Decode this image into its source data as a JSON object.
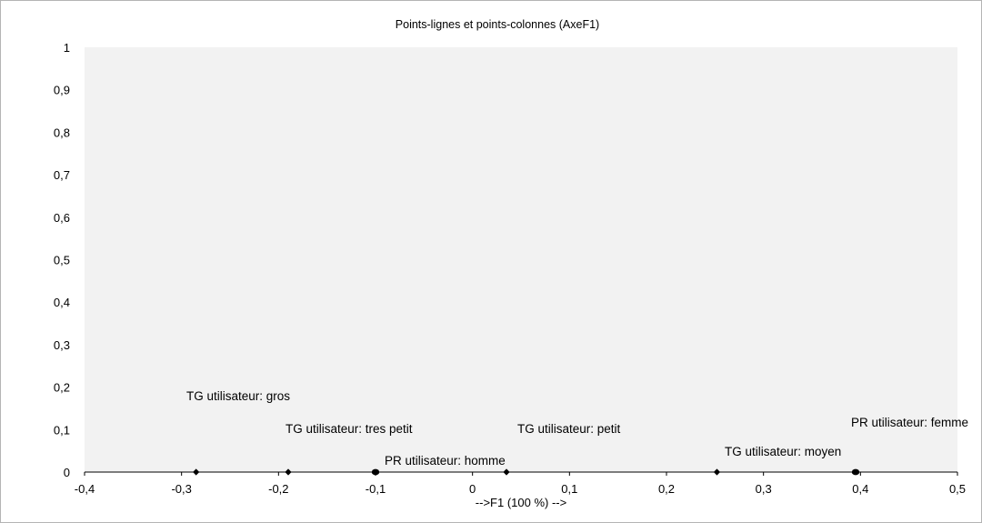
{
  "chart_data": {
    "type": "scatter",
    "title": "Points-lignes et points-colonnes (AxeF1)",
    "xlabel": "-->F1 (100 %) -->",
    "ylabel": "",
    "xlim": [
      -0.4,
      0.5
    ],
    "ylim": [
      0,
      1
    ],
    "xticks": [
      "-0,4",
      "-0,3",
      "-0,2",
      "-0,1",
      "0",
      "0,1",
      "0,2",
      "0,3",
      "0,4",
      "0,5"
    ],
    "yticks": [
      "0",
      "0,1",
      "0,2",
      "0,3",
      "0,4",
      "0,5",
      "0,6",
      "0,7",
      "0,8",
      "0,9",
      "1"
    ],
    "grid": false,
    "plot_background": "#f2f2f2",
    "series": [
      {
        "marker": "diamond",
        "color": "#000000",
        "points": [
          {
            "label": "TG utilisateur: gros",
            "x": -0.285,
            "y": 0
          },
          {
            "label": "TG utilisateur: tres petit",
            "x": -0.19,
            "y": 0
          },
          {
            "label": "TG utilisateur: petit",
            "x": 0.035,
            "y": 0
          },
          {
            "label": "TG utilisateur: moyen",
            "x": 0.252,
            "y": 0
          }
        ]
      },
      {
        "marker": "circle",
        "color": "#000000",
        "points": [
          {
            "label": "PR utilisateur: homme",
            "x": -0.1,
            "y": 0
          },
          {
            "label": "PR utilisateur: femme",
            "x": 0.395,
            "y": 0
          }
        ]
      }
    ]
  }
}
